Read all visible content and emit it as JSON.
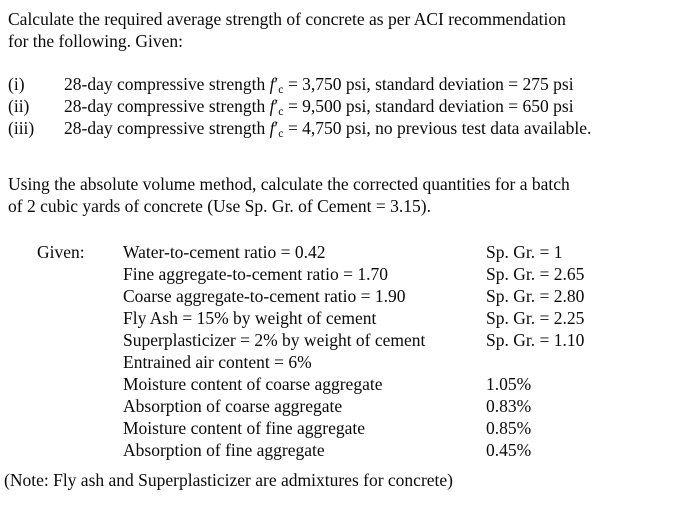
{
  "doc": {
    "para1_line1": "Calculate the required average strength of concrete as per ACI recommendation",
    "para1_line2": "for the following. Given:",
    "fc": {
      "letter": "f",
      "prime": "′",
      "subscript": "c"
    },
    "cases": [
      {
        "label": "(i)",
        "prefix": "28-day compressive strength ",
        "suffix": " = 3,750 psi, standard deviation = 275 psi"
      },
      {
        "label": "(ii)",
        "prefix": "28-day compressive strength ",
        "suffix": " = 9,500 psi, standard deviation = 650 psi"
      },
      {
        "label": "(iii)",
        "prefix": "28-day compressive strength ",
        "suffix": " = 4,750 psi, no previous test data available."
      }
    ],
    "para2_line1": "Using the absolute volume method, calculate the corrected quantities for a batch",
    "para2_line2": "of 2 cubic yards of concrete (Use Sp. Gr. of Cement = 3.15).",
    "given": {
      "label": "Given:",
      "rows": [
        {
          "item": "Water-to-cement ratio = 0.42",
          "value": "Sp. Gr. = 1"
        },
        {
          "item": "Fine aggregate-to-cement ratio = 1.70",
          "value": "Sp. Gr. = 2.65"
        },
        {
          "item": "Coarse aggregate-to-cement ratio = 1.90",
          "value": "Sp. Gr. = 2.80"
        },
        {
          "item": "Fly Ash = 15% by weight of cement",
          "value": "Sp. Gr. = 2.25"
        },
        {
          "item": "Superplasticizer = 2% by weight of cement",
          "value": "Sp. Gr. = 1.10"
        },
        {
          "item": "Entrained air content = 6%",
          "value": ""
        },
        {
          "item": "Moisture content of coarse aggregate",
          "value": "1.05%"
        },
        {
          "item": "Absorption of coarse aggregate",
          "value": "0.83%"
        },
        {
          "item": "Moisture content of fine aggregate",
          "value": "0.85%"
        },
        {
          "item": "Absorption of fine aggregate",
          "value": "0.45%"
        }
      ]
    },
    "note": "(Note: Fly ash and Superplasticizer are admixtures for concrete)"
  },
  "colors": {
    "background": "#ffffff",
    "text": "#0a0a0a"
  }
}
